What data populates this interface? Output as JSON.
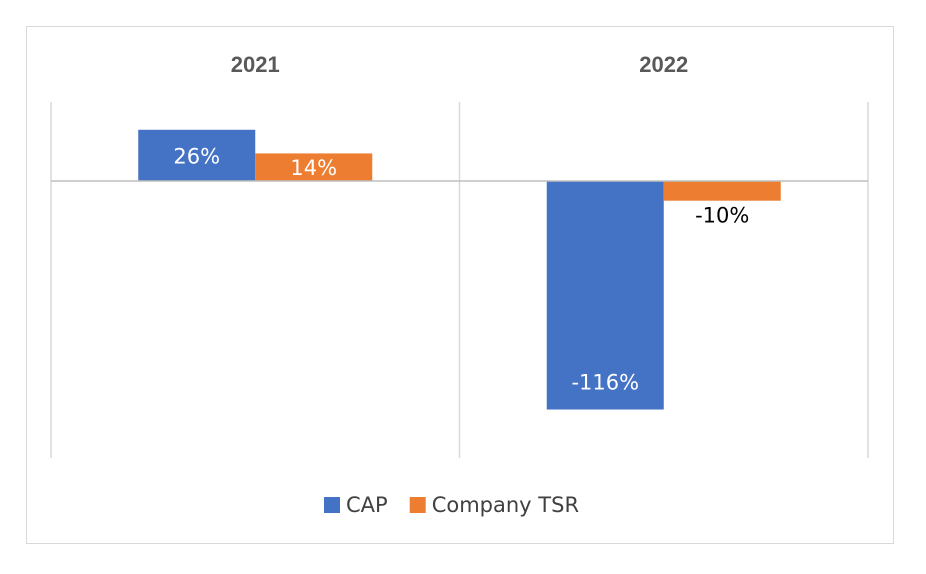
{
  "chart_data": {
    "type": "bar",
    "categories": [
      "2021",
      "2022"
    ],
    "series": [
      {
        "name": "CAP",
        "values": [
          26,
          -116
        ],
        "labels": [
          "26%",
          "-116%"
        ],
        "color": "#4472C4",
        "label_color": "#ffffff"
      },
      {
        "name": "Company TSR",
        "values": [
          14,
          -10
        ],
        "labels": [
          "14%",
          "-10%"
        ],
        "color": "#ED7D31",
        "label_color_pos": "#ffffff",
        "label_color_neg": "#000000"
      }
    ],
    "ylim": [
      -142,
      40
    ],
    "grid": false,
    "legend_position": "bottom",
    "gridline_color": "#d9d9d9",
    "axis_line_color": "#bfbfbf"
  }
}
